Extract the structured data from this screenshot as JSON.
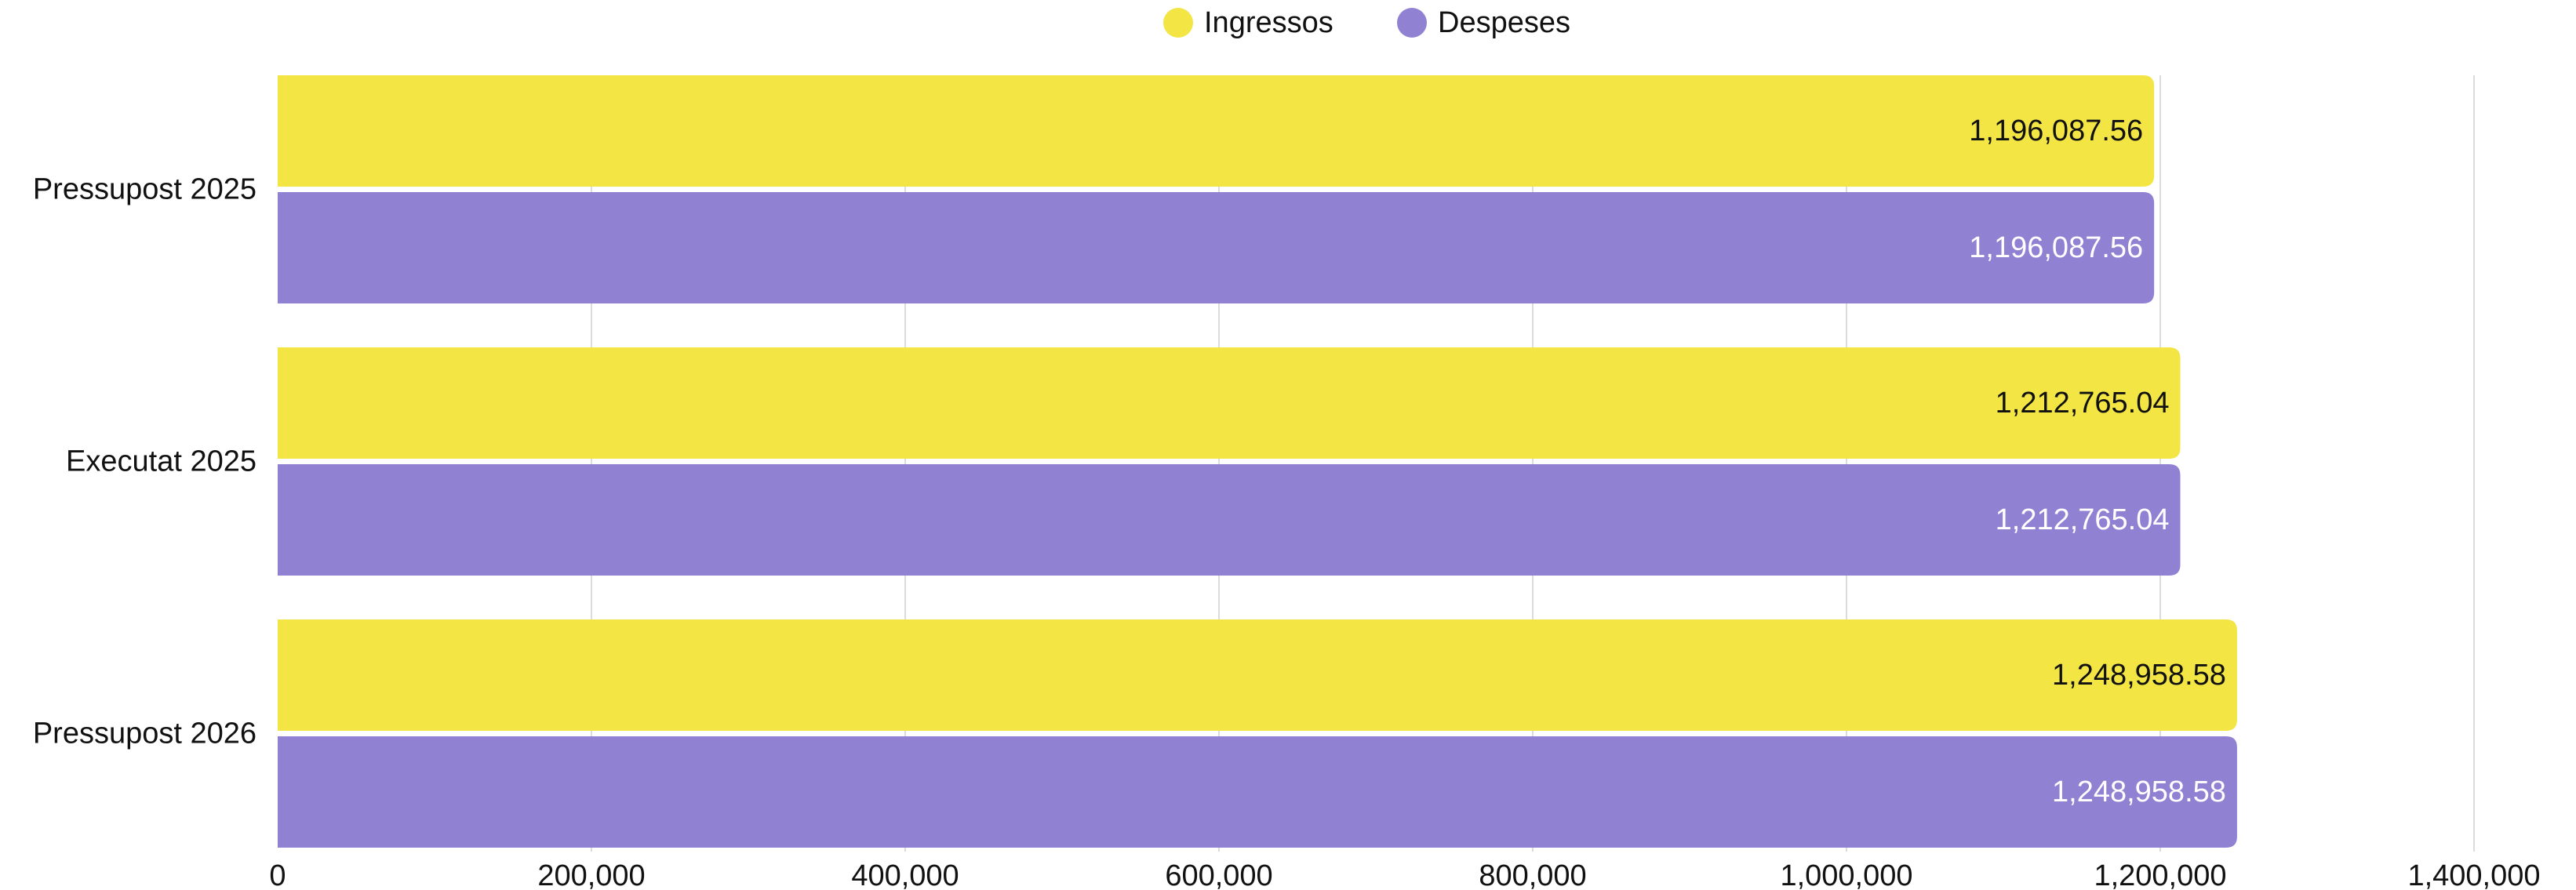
{
  "chart_data": {
    "type": "bar",
    "orientation": "horizontal",
    "categories": [
      "Pressupost 2025",
      "Executat 2025",
      "Pressupost 2026"
    ],
    "series": [
      {
        "name": "Ingressos",
        "color": "#f2e544",
        "label_color": "#111111",
        "values": [
          1196087.56,
          1212765.04,
          1248958.58
        ],
        "labels": [
          "1,196,087.56",
          "1,212,765.04",
          "1,248,958.58"
        ]
      },
      {
        "name": "Despeses",
        "color": "#9181d3",
        "label_color": "#ffffff",
        "values": [
          1196087.56,
          1212765.04,
          1248958.58
        ],
        "labels": [
          "1,196,087.56",
          "1,212,765.04",
          "1,248,958.58"
        ]
      }
    ],
    "xlim": [
      0,
      1400000
    ],
    "x_ticks": [
      0,
      200000,
      400000,
      600000,
      800000,
      1000000,
      1200000,
      1400000
    ],
    "x_tick_labels": [
      "0",
      "200,000",
      "400,000",
      "600,000",
      "800,000",
      "1,000,000",
      "1,200,000",
      "1,400,000"
    ],
    "grid": "vertical",
    "legend_position": "top-center",
    "title": "",
    "xlabel": "",
    "ylabel": ""
  }
}
